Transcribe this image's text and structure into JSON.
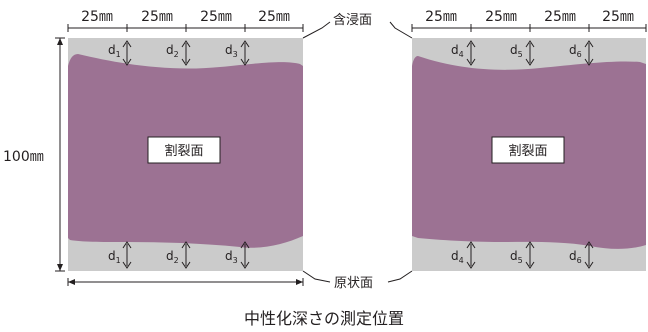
{
  "dimensions": {
    "segment": "25㎜",
    "height": "100㎜"
  },
  "callouts": {
    "impregnated_face": "含浸面",
    "original_face": "原状面"
  },
  "split_face_label": "割裂面",
  "left_specimen": {
    "measure_points": [
      "d1",
      "d2",
      "d3"
    ]
  },
  "right_specimen": {
    "measure_points": [
      "d4",
      "d5",
      "d6"
    ]
  },
  "caption": "中性化深さの測定位置",
  "colors": {
    "specimen_gray": "#cbcbcb",
    "carbonation_purple": "#9c7293",
    "line": "#231f20"
  }
}
